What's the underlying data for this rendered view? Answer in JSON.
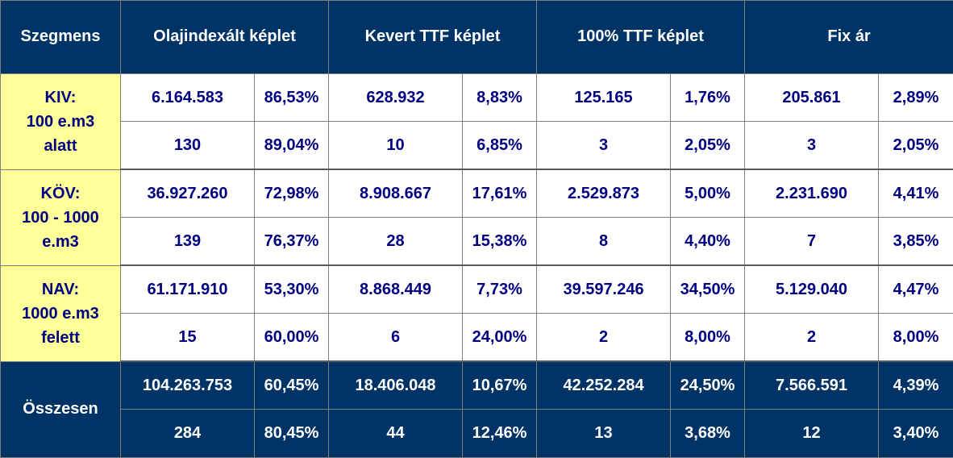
{
  "headers": [
    "Szegmens",
    "Olajindexált képlet",
    "Kevert TTF képlet",
    "100% TTF képlet",
    "Fix ár"
  ],
  "segments": [
    {
      "label": [
        "KIV:",
        "100 e.m3",
        "alatt"
      ],
      "rows": [
        [
          "6.164.583",
          "86,53%",
          "628.932",
          "8,83%",
          "125.165",
          "1,76%",
          "205.861",
          "2,89%"
        ],
        [
          "130",
          "89,04%",
          "10",
          "6,85%",
          "3",
          "2,05%",
          "3",
          "2,05%"
        ]
      ]
    },
    {
      "label": [
        "KÖV:",
        "100 - 1000",
        "e.m3"
      ],
      "rows": [
        [
          "36.927.260",
          "72,98%",
          "8.908.667",
          "17,61%",
          "2.529.873",
          "5,00%",
          "2.231.690",
          "4,41%"
        ],
        [
          "139",
          "76,37%",
          "28",
          "15,38%",
          "8",
          "4,40%",
          "7",
          "3,85%"
        ]
      ]
    },
    {
      "label": [
        "NAV:",
        "1000 e.m3",
        "felett"
      ],
      "rows": [
        [
          "61.171.910",
          "53,30%",
          "8.868.449",
          "7,73%",
          "39.597.246",
          "34,50%",
          "5.129.040",
          "4,47%"
        ],
        [
          "15",
          "60,00%",
          "6",
          "24,00%",
          "2",
          "8,00%",
          "2",
          "8,00%"
        ]
      ]
    }
  ],
  "total": {
    "label": "Összesen",
    "rows": [
      [
        "104.263.753",
        "60,45%",
        "18.406.048",
        "10,67%",
        "42.252.284",
        "24,50%",
        "7.566.591",
        "4,39%"
      ],
      [
        "284",
        "80,45%",
        "44",
        "12,46%",
        "13",
        "3,68%",
        "12",
        "3,40%"
      ]
    ]
  },
  "colors": {
    "header_bg": "#003366",
    "segment_bg": "#ffff99",
    "text_navy": "#000080"
  }
}
